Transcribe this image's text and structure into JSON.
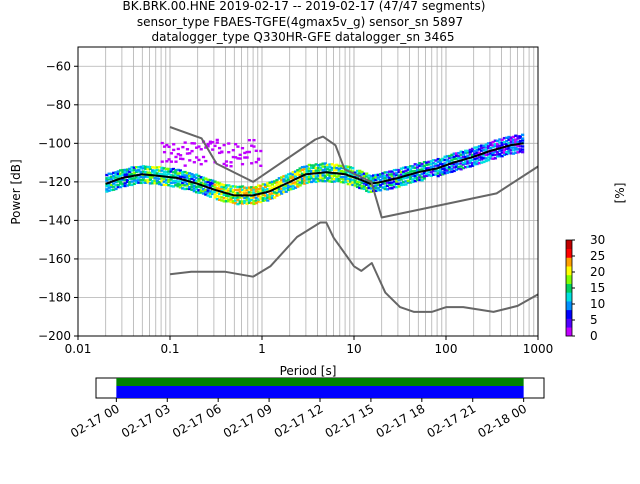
{
  "title_lines": [
    "BK.BRK.00.HNE   2019-02-17 -- 2019-02-17  (47/47 segments)",
    "sensor_type FBAES-TGFE(4gmax5v_g) sensor_sn 5897",
    "datalogger_type Q330HR-GFE datalogger_sn 3465"
  ],
  "chart_data": [
    {
      "type": "heatmap",
      "xlabel": "Period [s]",
      "ylabel": "Power [dB]",
      "x_scale": "log",
      "xlim": [
        0.01,
        1000
      ],
      "ylim": [
        -200,
        -50
      ],
      "x_ticks": [
        {
          "v": 0.01,
          "label": "0.01"
        },
        {
          "v": 0.1,
          "label": "0.1"
        },
        {
          "v": 1,
          "label": "1"
        },
        {
          "v": 10,
          "label": "10"
        },
        {
          "v": 100,
          "label": "100"
        },
        {
          "v": 1000,
          "label": "1000"
        }
      ],
      "y_ticks": [
        {
          "v": -60,
          "label": "−60"
        },
        {
          "v": -80,
          "label": "−80"
        },
        {
          "v": -100,
          "label": "−100"
        },
        {
          "v": -120,
          "label": "−120"
        },
        {
          "v": -140,
          "label": "−140"
        },
        {
          "v": -160,
          "label": "−160"
        },
        {
          "v": -180,
          "label": "−180"
        },
        {
          "v": -200,
          "label": "−200"
        }
      ],
      "grid": true,
      "colorbar": {
        "label": "[%]",
        "min": 0,
        "max": 30,
        "ticks": [
          {
            "v": 0,
            "label": "0"
          },
          {
            "v": 5,
            "label": "5"
          },
          {
            "v": 10,
            "label": "10"
          },
          {
            "v": 15,
            "label": "15"
          },
          {
            "v": 20,
            "label": "20"
          },
          {
            "v": 25,
            "label": "25"
          },
          {
            "v": 30,
            "label": "30"
          }
        ],
        "colors": [
          "#ffffff",
          "#c000ff",
          "#5000ff",
          "#0000ff",
          "#0090ff",
          "#00e0e0",
          "#00d060",
          "#80ff00",
          "#ffff00",
          "#ffa000",
          "#ff0000",
          "#c00000"
        ]
      },
      "series": [
        {
          "role": "mean",
          "color": "#000000",
          "x": [
            0.02,
            0.03,
            0.05,
            0.08,
            0.12,
            0.2,
            0.3,
            0.5,
            0.8,
            1.2,
            2,
            3,
            5,
            8,
            12,
            15,
            20,
            30,
            50,
            80,
            120,
            200,
            300,
            500,
            700
          ],
          "y": [
            -121,
            -118,
            -116,
            -117,
            -118,
            -121,
            -124,
            -127,
            -127,
            -125,
            -120,
            -116,
            -115,
            -116,
            -119,
            -121,
            -120,
            -118,
            -115,
            -113,
            -110,
            -107,
            -104,
            -101,
            -100
          ]
        },
        {
          "role": "NHNM",
          "color": "#666666",
          "x": [
            0.1,
            0.22,
            0.32,
            0.8,
            3.8,
            4.6,
            6.3,
            7.9,
            15.4,
            20,
            354.8,
            1000
          ],
          "y": [
            -91.5,
            -97.4,
            -110.5,
            -120,
            -98,
            -96.5,
            -101,
            -113.5,
            -120,
            -138.5,
            -126,
            -112
          ]
        },
        {
          "role": "NLNM",
          "color": "#666666",
          "x": [
            0.1,
            0.17,
            0.4,
            0.8,
            1.24,
            2.4,
            4.3,
            5,
            6,
            10,
            12,
            15.6,
            21.9,
            31.6,
            45,
            70,
            101,
            154,
            328,
            600,
            1000
          ],
          "y": [
            -168,
            -166.7,
            -166.7,
            -169.2,
            -163.7,
            -148.6,
            -141.1,
            -141.1,
            -149,
            -163.8,
            -166.2,
            -162.1,
            -177.5,
            -185,
            -187.5,
            -187.5,
            -185,
            -185,
            -187.5,
            -184.4,
            -178.4
          ]
        }
      ],
      "density_cells": [
        {
          "x": [
            0.02,
            0.05
          ],
          "y": [
            -122,
            -114
          ],
          "pct": [
            8,
            18
          ]
        },
        {
          "x": [
            0.05,
            0.1
          ],
          "y": [
            -120,
            -114
          ],
          "pct": [
            10,
            22
          ]
        },
        {
          "x": [
            0.1,
            0.3
          ],
          "y": [
            -125,
            -116
          ],
          "pct": [
            8,
            20
          ]
        },
        {
          "x": [
            0.3,
            1.0
          ],
          "y": [
            -129,
            -122
          ],
          "pct": [
            12,
            26
          ]
        },
        {
          "x": [
            1.0,
            3.0
          ],
          "y": [
            -127,
            -115
          ],
          "pct": [
            10,
            26
          ]
        },
        {
          "x": [
            3.0,
            10
          ],
          "y": [
            -119,
            -113
          ],
          "pct": [
            10,
            22
          ]
        },
        {
          "x": [
            10,
            20
          ],
          "y": [
            -123,
            -117
          ],
          "pct": [
            8,
            20
          ]
        },
        {
          "x": [
            20,
            60
          ],
          "y": [
            -121,
            -112
          ],
          "pct": [
            6,
            18
          ]
        },
        {
          "x": [
            60,
            200
          ],
          "y": [
            -114,
            -104
          ],
          "pct": [
            4,
            16
          ]
        },
        {
          "x": [
            200,
            700
          ],
          "y": [
            -108,
            -96
          ],
          "pct": [
            2,
            14
          ]
        },
        {
          "x": [
            0.08,
            1.0
          ],
          "y": [
            -112,
            -98
          ],
          "pct": [
            1,
            2
          ]
        }
      ]
    },
    {
      "type": "timeline",
      "x_ticks": [
        "02-17 00",
        "02-17 03",
        "02-17 06",
        "02-17 09",
        "02-17 12",
        "02-17 15",
        "02-17 18",
        "02-17 21",
        "02-18 00"
      ],
      "xlim_hours": [
        -1.2,
        25.2
      ],
      "coverage_hours": [
        0,
        24
      ],
      "bars": [
        {
          "color": "#008000",
          "role": "data coverage"
        },
        {
          "color": "#0000ff",
          "role": "PSD segments"
        }
      ]
    }
  ]
}
